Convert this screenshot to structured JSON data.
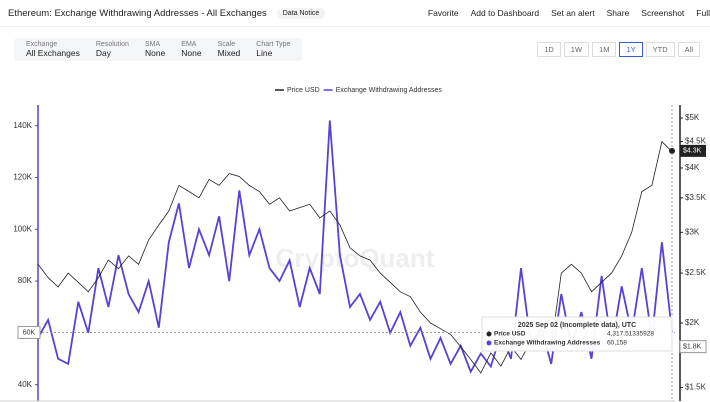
{
  "header": {
    "title": "Ethereum: Exchange Withdrawing Addresses - All Exchanges",
    "notice": "Data Notice",
    "actions": [
      "Favorite",
      "Add to Dashboard",
      "Set an alert",
      "Share",
      "Screenshot",
      "Full"
    ]
  },
  "filters": [
    {
      "label": "Exchange",
      "value": "All Exchanges"
    },
    {
      "label": "Resolution",
      "value": "Day"
    },
    {
      "label": "SMA",
      "value": "None"
    },
    {
      "label": "EMA",
      "value": "None"
    },
    {
      "label": "Scale",
      "value": "Mixed"
    },
    {
      "label": "Chart Type",
      "value": "Line"
    }
  ],
  "ranges": [
    "1D",
    "1W",
    "1M",
    "1Y",
    "YTD",
    "All"
  ],
  "active_range": "1Y",
  "chart_data": {
    "type": "line",
    "watermark": "CryptoQuant",
    "series": [
      {
        "name": "Price USD",
        "color": "#222222",
        "axis": "y2",
        "values": [
          2600,
          2450,
          2350,
          2500,
          2400,
          2300,
          2450,
          2650,
          2550,
          2700,
          2600,
          2900,
          3100,
          3300,
          3700,
          3600,
          3500,
          3800,
          3700,
          3900,
          3850,
          3700,
          3600,
          3400,
          3500,
          3300,
          3350,
          3400,
          3200,
          3300,
          3100,
          2800,
          2700,
          2650,
          2500,
          2400,
          2300,
          2250,
          2100,
          2000,
          1950,
          1900,
          1800,
          1700,
          1600,
          1750,
          1650,
          1800,
          1700,
          1850,
          1900,
          1800,
          2500,
          2600,
          2500,
          2300,
          2400,
          2500,
          2700,
          3000,
          3600,
          3700,
          4500,
          4300
        ]
      },
      {
        "name": "Exchange Withdrawing Addresses",
        "color": "#5b3fd6",
        "values": [
          58000,
          65000,
          50000,
          48000,
          72000,
          60000,
          85000,
          70000,
          90000,
          75000,
          68000,
          80000,
          62000,
          95000,
          110000,
          85000,
          100000,
          90000,
          105000,
          80000,
          115000,
          90000,
          100000,
          85000,
          80000,
          88000,
          70000,
          85000,
          75000,
          142000,
          90000,
          70000,
          75000,
          65000,
          72000,
          60000,
          68000,
          55000,
          62000,
          50000,
          58000,
          48000,
          55000,
          45000,
          52000,
          47000,
          60000,
          50000,
          85000,
          55000,
          62000,
          48000,
          75000,
          55000,
          68000,
          50000,
          82000,
          55000,
          78000,
          60000,
          85000,
          58000,
          95000,
          60158
        ]
      }
    ],
    "ylim": [
      36000,
      148000
    ],
    "yticks": [
      {
        "value": 40000,
        "label": "40K"
      },
      {
        "value": 60000,
        "label": "60K"
      },
      {
        "value": 80000,
        "label": "80K"
      },
      {
        "value": 100000,
        "label": "100K"
      },
      {
        "value": 120000,
        "label": "120K"
      },
      {
        "value": 140000,
        "label": "140K"
      }
    ],
    "y2lim": [
      1450,
      5300
    ],
    "y2log": true,
    "y2ticks": [
      {
        "value": 1500,
        "label": "$1.5K"
      },
      {
        "value": 2000,
        "label": "$2K"
      },
      {
        "value": 2500,
        "label": "$2.5K"
      },
      {
        "value": 3000,
        "label": "$3K"
      },
      {
        "value": 3500,
        "label": "$3.5K"
      },
      {
        "value": 4000,
        "label": "$4K"
      },
      {
        "value": 4500,
        "label": "$4.5K"
      },
      {
        "value": 5000,
        "label": "$5K"
      }
    ],
    "crosshair": {
      "left": {
        "value": 60158,
        "label": "60K"
      },
      "right": {
        "value": 1800,
        "label": "$1.8K"
      },
      "price": {
        "value": 4317.51335928,
        "label": "$4.3K"
      }
    },
    "tooltip": {
      "date": "2025 Sep 02 (Incomplete data), UTC",
      "rows": [
        {
          "name": "Price USD",
          "value": "4,317.51335928"
        },
        {
          "name": "Exchange Withdrawing Addresses",
          "value": "60,158"
        }
      ]
    }
  }
}
